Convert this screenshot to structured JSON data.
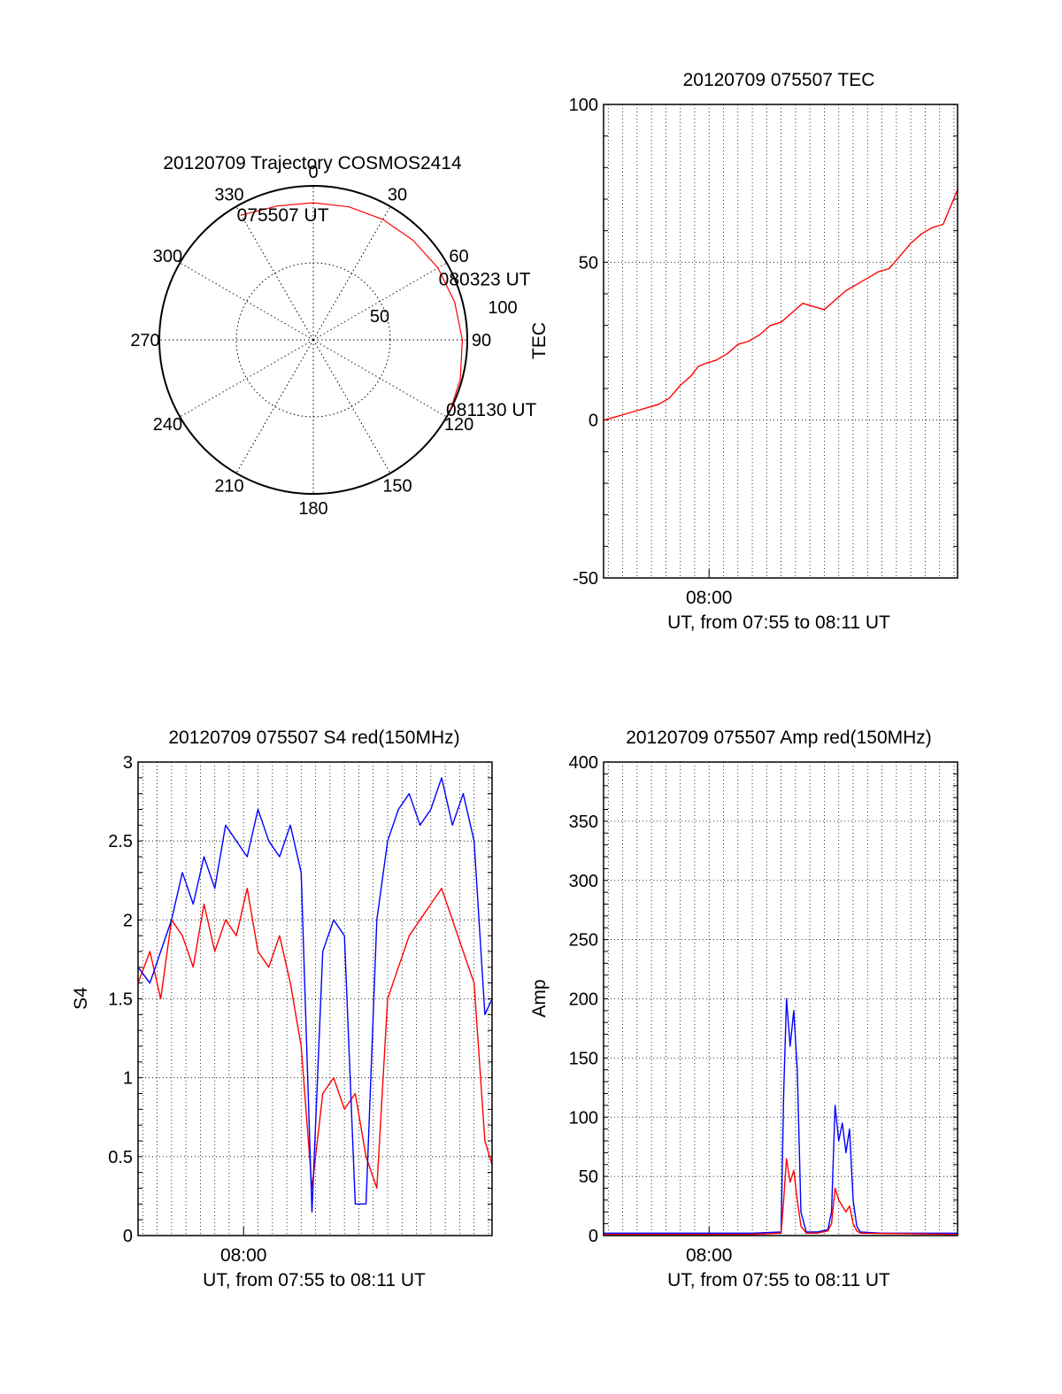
{
  "chart_data": [
    {
      "type": "polar",
      "title": "20120709 Trajectory COSMOS2414",
      "angle_labels": [
        "0",
        "30",
        "60",
        "90",
        "120",
        "150",
        "180",
        "210",
        "240",
        "270",
        "300",
        "330"
      ],
      "radial_ticks": [
        50,
        100
      ],
      "radial_max": 100,
      "grid": true,
      "trace_color": "#ff0000",
      "trajectory": {
        "azimuth": [
          330,
          345,
          0,
          15,
          30,
          45,
          60,
          75,
          90,
          105,
          117
        ],
        "radius": [
          93.5,
          90,
          89,
          89.4,
          90.3,
          91.5,
          93.5,
          95,
          96.8,
          98.8,
          100
        ]
      },
      "annotations": [
        {
          "text": "075507 UT",
          "azimuth": 330,
          "radius": 93.5
        },
        {
          "text": "080323 UT",
          "azimuth": 65,
          "radius": 93
        },
        {
          "text": "081130 UT",
          "azimuth": 117,
          "radius": 100
        }
      ]
    },
    {
      "type": "line",
      "title": "20120709 075507 TEC",
      "xlabel": "UT, from 07:55 to 08:11 UT",
      "ylabel": "TEC",
      "xlim": [
        "07:55:07",
        "08:11:30"
      ],
      "ylim": [
        -50,
        100
      ],
      "y_ticks": [
        -50,
        0,
        50,
        100
      ],
      "x_tick_labels": [
        {
          "label": "08:00",
          "at": "08:00:00"
        }
      ],
      "grid": true,
      "series": [
        {
          "color": "#ff0000",
          "x": [
            "07:55:07",
            "07:55:40",
            "07:56:10",
            "07:56:40",
            "07:57:10",
            "07:57:40",
            "07:58:10",
            "07:58:40",
            "07:59:10",
            "07:59:30",
            "07:59:50",
            "08:00:20",
            "08:00:50",
            "08:01:20",
            "08:01:50",
            "08:02:20",
            "08:02:50",
            "08:03:20",
            "08:03:50",
            "08:04:20",
            "08:04:50",
            "08:05:20",
            "08:05:50",
            "08:06:20",
            "08:06:50",
            "08:07:20",
            "08:07:50",
            "08:08:20",
            "08:08:50",
            "08:09:20",
            "08:09:50",
            "08:10:20",
            "08:10:50",
            "08:11:30"
          ],
          "values": [
            0,
            1,
            2,
            3,
            4,
            5,
            7,
            11,
            14,
            17,
            18,
            19,
            21,
            24,
            25,
            27,
            30,
            31,
            34,
            37,
            36,
            35,
            38,
            41,
            43,
            45,
            47,
            48,
            52,
            56,
            59,
            61,
            62,
            73
          ]
        }
      ]
    },
    {
      "type": "line",
      "title": "20120709 075507 S4 red(150MHz)",
      "xlabel": "UT, from 07:55 to 08:11 UT",
      "ylabel": "S4",
      "xlim": [
        "07:55:07",
        "08:11:30"
      ],
      "ylim": [
        0,
        3
      ],
      "y_ticks": [
        0,
        0.5,
        1,
        1.5,
        2,
        2.5,
        3
      ],
      "x_tick_labels": [
        {
          "label": "08:00",
          "at": "08:00:00"
        }
      ],
      "grid": true,
      "series": [
        {
          "color": "#ff0000",
          "x": [
            "07:55:07",
            "07:55:40",
            "07:56:10",
            "07:56:40",
            "07:57:10",
            "07:57:40",
            "07:58:10",
            "07:58:40",
            "07:59:10",
            "07:59:40",
            "08:00:10",
            "08:00:40",
            "08:01:10",
            "08:01:40",
            "08:02:10",
            "08:02:40",
            "08:03:10",
            "08:03:40",
            "08:04:10",
            "08:04:40",
            "08:05:10",
            "08:05:40",
            "08:06:10",
            "08:06:40",
            "08:07:10",
            "08:07:40",
            "08:08:10",
            "08:08:40",
            "08:09:10",
            "08:09:40",
            "08:10:10",
            "08:10:40",
            "08:11:10",
            "08:11:30"
          ],
          "values": [
            1.6,
            1.8,
            1.5,
            2.0,
            1.9,
            1.7,
            2.1,
            1.8,
            2.0,
            1.9,
            2.2,
            1.8,
            1.7,
            1.9,
            1.6,
            1.2,
            0.3,
            0.9,
            1.0,
            0.8,
            0.9,
            0.5,
            0.3,
            1.5,
            1.7,
            1.9,
            2.0,
            2.1,
            2.2,
            2.0,
            1.8,
            1.6,
            0.6,
            0.45
          ]
        },
        {
          "color": "#0000ff",
          "x": [
            "07:55:07",
            "07:55:40",
            "07:56:10",
            "07:56:40",
            "07:57:10",
            "07:57:40",
            "07:58:10",
            "07:58:40",
            "07:59:10",
            "07:59:40",
            "08:00:10",
            "08:00:40",
            "08:01:10",
            "08:01:40",
            "08:02:10",
            "08:02:40",
            "08:03:10",
            "08:03:40",
            "08:04:10",
            "08:04:40",
            "08:05:10",
            "08:05:40",
            "08:06:10",
            "08:06:40",
            "08:07:10",
            "08:07:40",
            "08:08:10",
            "08:08:40",
            "08:09:10",
            "08:09:40",
            "08:10:10",
            "08:10:40",
            "08:11:10",
            "08:11:30"
          ],
          "values": [
            1.7,
            1.6,
            1.8,
            2.0,
            2.3,
            2.1,
            2.4,
            2.2,
            2.6,
            2.5,
            2.4,
            2.7,
            2.5,
            2.4,
            2.6,
            2.3,
            0.15,
            1.8,
            2.0,
            1.9,
            0.2,
            0.2,
            2.0,
            2.5,
            2.7,
            2.8,
            2.6,
            2.7,
            2.9,
            2.6,
            2.8,
            2.5,
            1.4,
            1.5
          ]
        }
      ]
    },
    {
      "type": "line",
      "title": "20120709 075507 Amp red(150MHz)",
      "xlabel": "UT, from 07:55 to 08:11 UT",
      "ylabel": "Amp",
      "xlim": [
        "07:55:07",
        "08:11:30"
      ],
      "ylim": [
        0,
        400
      ],
      "y_ticks": [
        0,
        50,
        100,
        150,
        200,
        250,
        300,
        350,
        400
      ],
      "x_tick_labels": [
        {
          "label": "08:00",
          "at": "08:00:00"
        }
      ],
      "grid": true,
      "series": [
        {
          "color": "#0000ff",
          "x": [
            "07:55:07",
            "07:58:00",
            "08:02:00",
            "08:03:20",
            "08:03:27",
            "08:03:35",
            "08:03:45",
            "08:03:55",
            "08:04:05",
            "08:04:15",
            "08:04:30",
            "08:05:00",
            "08:05:30",
            "08:05:40",
            "08:05:50",
            "08:06:00",
            "08:06:10",
            "08:06:20",
            "08:06:30",
            "08:06:40",
            "08:06:50",
            "08:07:00",
            "08:08:00",
            "08:11:30"
          ],
          "values": [
            2,
            2,
            2,
            3,
            120,
            200,
            160,
            190,
            140,
            20,
            3,
            3,
            5,
            20,
            110,
            80,
            95,
            70,
            90,
            30,
            8,
            3,
            2,
            2
          ]
        },
        {
          "color": "#ff0000",
          "x": [
            "07:55:07",
            "08:02:00",
            "08:03:20",
            "08:03:27",
            "08:03:35",
            "08:03:45",
            "08:03:55",
            "08:04:05",
            "08:04:15",
            "08:04:30",
            "08:05:00",
            "08:05:30",
            "08:05:40",
            "08:05:50",
            "08:06:00",
            "08:06:10",
            "08:06:20",
            "08:06:30",
            "08:06:40",
            "08:06:50",
            "08:07:00",
            "08:11:30"
          ],
          "values": [
            1,
            1,
            2,
            30,
            65,
            45,
            55,
            30,
            8,
            2,
            2,
            4,
            10,
            40,
            30,
            25,
            20,
            25,
            10,
            4,
            2,
            1
          ]
        }
      ]
    }
  ]
}
